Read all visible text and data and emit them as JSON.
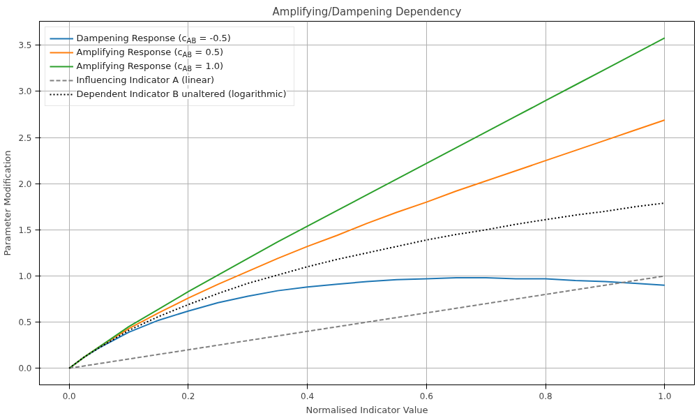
{
  "chart_data": {
    "type": "line",
    "title": "Amplifying/Dampening Dependency",
    "xlabel": "Normalised Indicator Value",
    "ylabel": "Parameter Modification",
    "x": [
      0,
      0.025,
      0.05,
      0.1,
      0.15,
      0.2,
      0.25,
      0.3,
      0.35,
      0.4,
      0.45,
      0.5,
      0.55,
      0.6,
      0.65,
      0.7,
      0.75,
      0.8,
      0.85,
      0.9,
      0.95,
      1.0
    ],
    "series": [
      {
        "name": "Dampening Response (c$_{AB}$ = -0.5)",
        "color": "#1f77b4",
        "line_style": "solid",
        "values": [
          0,
          0.12,
          0.22,
          0.39,
          0.52,
          0.62,
          0.71,
          0.78,
          0.84,
          0.88,
          0.91,
          0.94,
          0.96,
          0.97,
          0.98,
          0.98,
          0.97,
          0.97,
          0.95,
          0.94,
          0.92,
          0.9
        ]
      },
      {
        "name": "Amplifying Response (c$_{AB}$ = 0.5)",
        "color": "#ff7f0e",
        "line_style": "solid",
        "values": [
          0,
          0.12,
          0.23,
          0.43,
          0.6,
          0.76,
          0.91,
          1.05,
          1.19,
          1.32,
          1.44,
          1.57,
          1.69,
          1.8,
          1.92,
          2.03,
          2.14,
          2.25,
          2.36,
          2.47,
          2.58,
          2.69
        ]
      },
      {
        "name": "Amplifying Response (c$_{AB}$ = 1.0)",
        "color": "#2ca02c",
        "line_style": "solid",
        "values": [
          0,
          0.12,
          0.23,
          0.45,
          0.64,
          0.83,
          1.01,
          1.19,
          1.37,
          1.54,
          1.71,
          1.88,
          2.05,
          2.22,
          2.39,
          2.56,
          2.73,
          2.9,
          3.07,
          3.24,
          3.41,
          3.58
        ]
      },
      {
        "name": "Influencing Indicator A (linear)",
        "color": "#808080",
        "line_style": "dashed",
        "values": [
          0,
          0.025,
          0.05,
          0.1,
          0.15,
          0.2,
          0.25,
          0.3,
          0.35,
          0.4,
          0.45,
          0.5,
          0.55,
          0.6,
          0.65,
          0.7,
          0.75,
          0.8,
          0.85,
          0.9,
          0.95,
          1.0
        ]
      },
      {
        "name": "Dependent Indicator B unaltered (logarithmic)",
        "color": "#000000",
        "line_style": "dotted",
        "values": [
          0,
          0.12,
          0.22,
          0.41,
          0.56,
          0.69,
          0.81,
          0.92,
          1.01,
          1.1,
          1.18,
          1.25,
          1.32,
          1.39,
          1.45,
          1.5,
          1.56,
          1.61,
          1.66,
          1.7,
          1.75,
          1.79
        ]
      }
    ],
    "xlim": [
      -0.05,
      1.05
    ],
    "ylim": [
      -0.18,
      3.76
    ],
    "xticks": [
      {
        "value": 0,
        "label": "0.0"
      },
      0.2,
      0.4,
      0.6,
      0.8,
      {
        "value": 1,
        "label": "1.0"
      }
    ],
    "yticks": [
      {
        "value": 0,
        "label": "0.0"
      },
      0.5,
      {
        "value": 1,
        "label": "1.0"
      },
      1.5,
      {
        "value": 2,
        "label": "2.0"
      },
      2.5,
      {
        "value": 3,
        "label": "3.0"
      },
      3.5
    ],
    "grid": true,
    "legend": "top left",
    "marker": "none"
  }
}
